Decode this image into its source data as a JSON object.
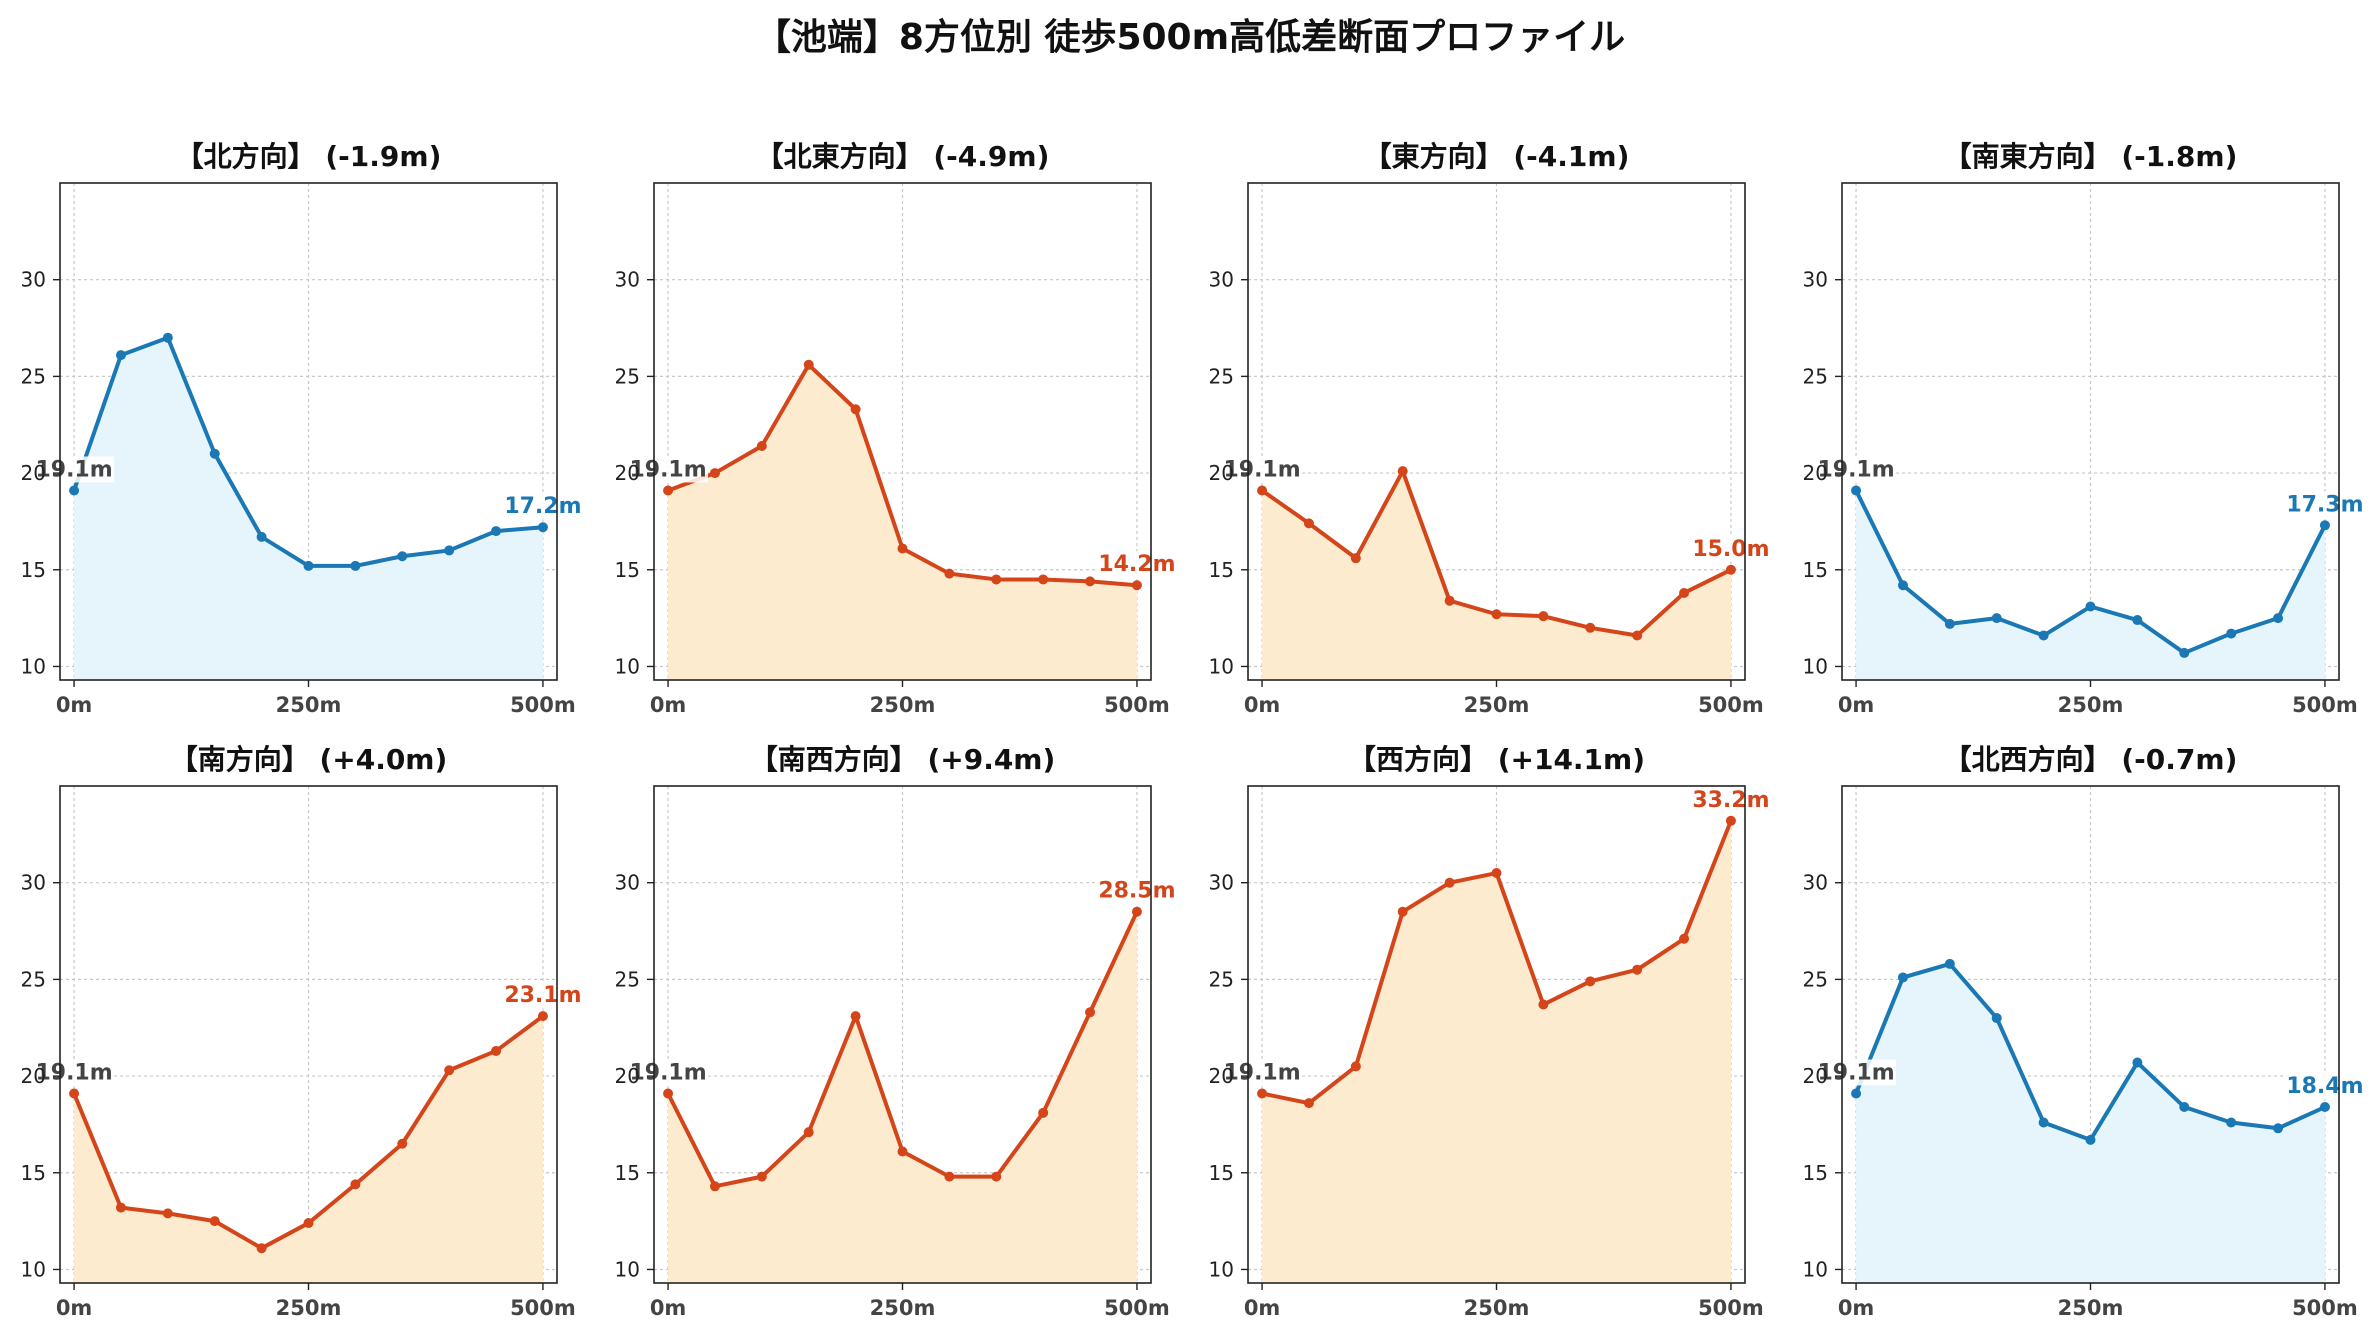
{
  "title": "【池端】8方位別 徒歩500m高低差断面プロファイル",
  "colors": {
    "up": "#d4451a",
    "down": "#1a78b4",
    "up_fill": "#fdebd0",
    "down_fill": "#e6f4fb",
    "start": "#444444"
  },
  "chart_data": [
    {
      "type": "area",
      "title": "【北方向】 (-1.9m)",
      "trend": "down",
      "x": [
        0,
        50,
        100,
        150,
        200,
        250,
        300,
        350,
        400,
        450,
        500
      ],
      "values": [
        19.1,
        26.1,
        27.0,
        21.0,
        16.7,
        15.2,
        15.2,
        15.7,
        16.0,
        17.0,
        17.2
      ],
      "start_label": "19.1m",
      "end_label": "17.2m"
    },
    {
      "type": "area",
      "title": "【北東方向】 (-4.9m)",
      "trend": "up",
      "x": [
        0,
        50,
        100,
        150,
        200,
        250,
        300,
        350,
        400,
        450,
        500
      ],
      "values": [
        19.1,
        20.0,
        21.4,
        25.6,
        23.3,
        16.1,
        14.8,
        14.5,
        14.5,
        14.4,
        14.2
      ],
      "start_label": "19.1m",
      "end_label": "14.2m"
    },
    {
      "type": "area",
      "title": "【東方向】 (-4.1m)",
      "trend": "up",
      "x": [
        0,
        50,
        100,
        150,
        200,
        250,
        300,
        350,
        400,
        450,
        500
      ],
      "values": [
        19.1,
        17.4,
        15.6,
        20.1,
        13.4,
        12.7,
        12.6,
        12.0,
        11.6,
        13.8,
        15.0
      ],
      "start_label": "19.1m",
      "end_label": "15.0m"
    },
    {
      "type": "area",
      "title": "【南東方向】 (-1.8m)",
      "trend": "down",
      "x": [
        0,
        50,
        100,
        150,
        200,
        250,
        300,
        350,
        400,
        450,
        500
      ],
      "values": [
        19.1,
        14.2,
        12.2,
        12.5,
        11.6,
        13.1,
        12.4,
        10.7,
        11.7,
        12.5,
        17.3
      ],
      "start_label": "19.1m",
      "end_label": "17.3m"
    },
    {
      "type": "area",
      "title": "【南方向】 (+4.0m)",
      "trend": "up",
      "x": [
        0,
        50,
        100,
        150,
        200,
        250,
        300,
        350,
        400,
        450,
        500
      ],
      "values": [
        19.1,
        13.2,
        12.9,
        12.5,
        11.1,
        12.4,
        14.4,
        16.5,
        20.3,
        21.3,
        23.1
      ],
      "start_label": "19.1m",
      "end_label": "23.1m"
    },
    {
      "type": "area",
      "title": "【南西方向】 (+9.4m)",
      "trend": "up",
      "x": [
        0,
        50,
        100,
        150,
        200,
        250,
        300,
        350,
        400,
        450,
        500
      ],
      "values": [
        19.1,
        14.3,
        14.8,
        17.1,
        23.1,
        16.1,
        14.8,
        14.8,
        18.1,
        23.3,
        28.5
      ],
      "start_label": "19.1m",
      "end_label": "28.5m"
    },
    {
      "type": "area",
      "title": "【西方向】 (+14.1m)",
      "trend": "up",
      "x": [
        0,
        50,
        100,
        150,
        200,
        250,
        300,
        350,
        400,
        450,
        500
      ],
      "values": [
        19.1,
        18.6,
        20.5,
        28.5,
        30.0,
        30.5,
        23.7,
        24.9,
        25.5,
        27.1,
        33.2
      ],
      "start_label": "19.1m",
      "end_label": "33.2m"
    },
    {
      "type": "area",
      "title": "【北西方向】 (-0.7m)",
      "trend": "down",
      "x": [
        0,
        50,
        100,
        150,
        200,
        250,
        300,
        350,
        400,
        450,
        500
      ],
      "values": [
        19.1,
        25.1,
        25.8,
        23.0,
        17.6,
        16.7,
        20.7,
        18.4,
        17.6,
        17.3,
        18.4
      ],
      "start_label": "19.1m",
      "end_label": "18.4m"
    }
  ],
  "axes": {
    "xlim": [
      -15,
      515
    ],
    "ylim": [
      9.3,
      35
    ],
    "xticks": [
      0,
      250,
      500
    ],
    "xtick_labels": [
      "0m",
      "250m",
      "500m"
    ],
    "yticks": [
      10,
      15,
      20,
      25,
      30
    ],
    "ytick_labels": [
      "10",
      "15",
      "20",
      "25",
      "30"
    ],
    "grid": true
  }
}
